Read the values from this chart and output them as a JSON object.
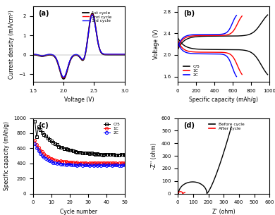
{
  "panel_a": {
    "title": "(a)",
    "xlabel": "Voltage (V)",
    "ylabel": "Current density (mA/cm²)",
    "xlim": [
      1.5,
      3.0
    ],
    "ylim": [
      -1.4,
      2.5
    ],
    "colors": [
      "black",
      "red",
      "blue"
    ],
    "labels": [
      "1st cycle",
      "2nd cycle",
      "3rd cycle"
    ],
    "xticks": [
      1.5,
      2.0,
      2.5,
      3.0
    ],
    "yticks": [
      -1,
      0,
      1,
      2
    ]
  },
  "panel_b": {
    "title": "(b)",
    "xlabel": "Specific capacity (mAh/g)",
    "ylabel": "Voltage (V)",
    "xlim": [
      0,
      1000
    ],
    "ylim": [
      1.5,
      2.9
    ],
    "colors": [
      "black",
      "red",
      "blue"
    ],
    "labels": [
      "C/5",
      "1C",
      "2C"
    ],
    "xticks": [
      0,
      200,
      400,
      600,
      800,
      1000
    ],
    "yticks": [
      1.6,
      2.0,
      2.4,
      2.8
    ]
  },
  "panel_c": {
    "title": "(c)",
    "xlabel": "Cycle number",
    "ylabel": "Specific capacity (mAh/g)",
    "xlim": [
      0,
      50
    ],
    "ylim": [
      0,
      1000
    ],
    "colors": [
      "black",
      "red",
      "blue"
    ],
    "labels": [
      "C/5",
      "1C",
      "2C"
    ],
    "markers": [
      "s",
      "o",
      "o"
    ],
    "xticks": [
      0,
      10,
      20,
      30,
      40,
      50
    ],
    "yticks": [
      0,
      200,
      400,
      600,
      800,
      1000
    ]
  },
  "panel_d": {
    "title": "(d)",
    "xlabel": "Z' (ohm)",
    "ylabel": "-Z'' (ohm)",
    "xlim": [
      0,
      600
    ],
    "ylim": [
      0,
      600
    ],
    "colors": [
      "black",
      "red"
    ],
    "labels": [
      "Before cycle",
      "After cycle"
    ],
    "xticks": [
      0,
      100,
      200,
      300,
      400,
      500,
      600
    ],
    "yticks": [
      0,
      100,
      200,
      300,
      400,
      500,
      600
    ]
  }
}
